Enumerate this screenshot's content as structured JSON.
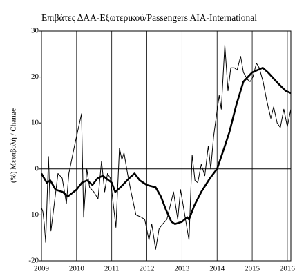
{
  "chart_data": {
    "type": "line",
    "title": "Επιβάτες ΔΑΑ-Εξωτερικού/Passengers AIA-International",
    "y_label": "(%) Μεταβολή / Change",
    "xlim": [
      2009,
      2016.1
    ],
    "xticks": [
      2009,
      2010,
      2011,
      2012,
      2013,
      2014,
      2015,
      2016
    ],
    "ylim": [
      -20,
      30
    ],
    "yticks": [
      -20,
      -10,
      0,
      10,
      20,
      30
    ],
    "grid": true,
    "series": [
      {
        "color": "#000000",
        "width": 1,
        "x": [
          2009.0,
          2009.04,
          2009.08,
          2009.12,
          2009.2,
          2009.27,
          2009.47,
          2009.59,
          2009.71,
          2009.78,
          2009.94,
          2010.14,
          2010.2,
          2010.29,
          2010.37,
          2010.49,
          2010.61,
          2010.71,
          2010.8,
          2010.88,
          2010.96,
          2011.12,
          2011.22,
          2011.29,
          2011.35,
          2011.45,
          2011.55,
          2011.69,
          2011.84,
          2011.94,
          2012.06,
          2012.14,
          2012.25,
          2012.35,
          2012.45,
          2012.57,
          2012.76,
          2012.88,
          2012.96,
          2013.2,
          2013.29,
          2013.37,
          2013.45,
          2013.55,
          2013.65,
          2013.75,
          2013.82,
          2013.9,
          2014.06,
          2014.12,
          2014.22,
          2014.31,
          2014.39,
          2014.49,
          2014.57,
          2014.67,
          2014.75,
          2014.86,
          2014.94,
          2015.02,
          2015.12,
          2015.2,
          2015.31,
          2015.41,
          2015.53,
          2015.61,
          2015.71,
          2015.8,
          2015.9,
          2016.0,
          2016.1
        ],
        "values": [
          -8.4,
          -9.3,
          -12,
          -16,
          2.7,
          -13.5,
          -1,
          -2,
          -7.5,
          -1,
          5,
          12,
          -10.5,
          0,
          -4,
          -5,
          -6.5,
          1.7,
          -5,
          -1,
          -2,
          -12.7,
          4.5,
          2,
          3.5,
          -1,
          -5,
          -10,
          -10.5,
          -11,
          -15.5,
          -12,
          -17.5,
          -13,
          -12,
          -11,
          -5,
          -11,
          -4.5,
          -15.5,
          3,
          -2.5,
          -3,
          1,
          -1.5,
          5,
          0,
          7,
          16,
          13,
          27,
          17,
          22,
          22,
          21.5,
          24.5,
          21,
          19.5,
          19,
          20,
          23,
          22,
          19,
          15,
          11,
          13.5,
          10,
          9,
          13,
          9.2,
          13
        ]
      },
      {
        "color": "#000000",
        "width": 2.6,
        "x": [
          2009.0,
          2009.15,
          2009.25,
          2009.4,
          2009.6,
          2009.75,
          2010.0,
          2010.15,
          2010.3,
          2010.45,
          2010.6,
          2010.75,
          2011.0,
          2011.1,
          2011.25,
          2011.5,
          2011.65,
          2011.8,
          2012.0,
          2012.25,
          2012.4,
          2012.55,
          2012.7,
          2012.8,
          2013.0,
          2013.15,
          2013.2,
          2013.35,
          2013.55,
          2013.8,
          2014.0,
          2014.2,
          2014.35,
          2014.55,
          2014.75,
          2015.0,
          2015.15,
          2015.3,
          2015.45,
          2015.75,
          2015.95,
          2016.1
        ],
        "values": [
          -1,
          -3,
          -2.5,
          -4.5,
          -5,
          -6,
          -4.5,
          -3,
          -2.5,
          -3.5,
          -2,
          -1.5,
          -3,
          -5,
          -4,
          -2,
          -1,
          -2.5,
          -3.5,
          -4,
          -6,
          -9,
          -11.5,
          -12,
          -11.5,
          -10.5,
          -11,
          -8,
          -5,
          -2,
          0,
          4.5,
          8,
          14,
          19,
          21,
          21.5,
          22,
          21,
          18.5,
          17,
          16.5
        ]
      }
    ]
  }
}
